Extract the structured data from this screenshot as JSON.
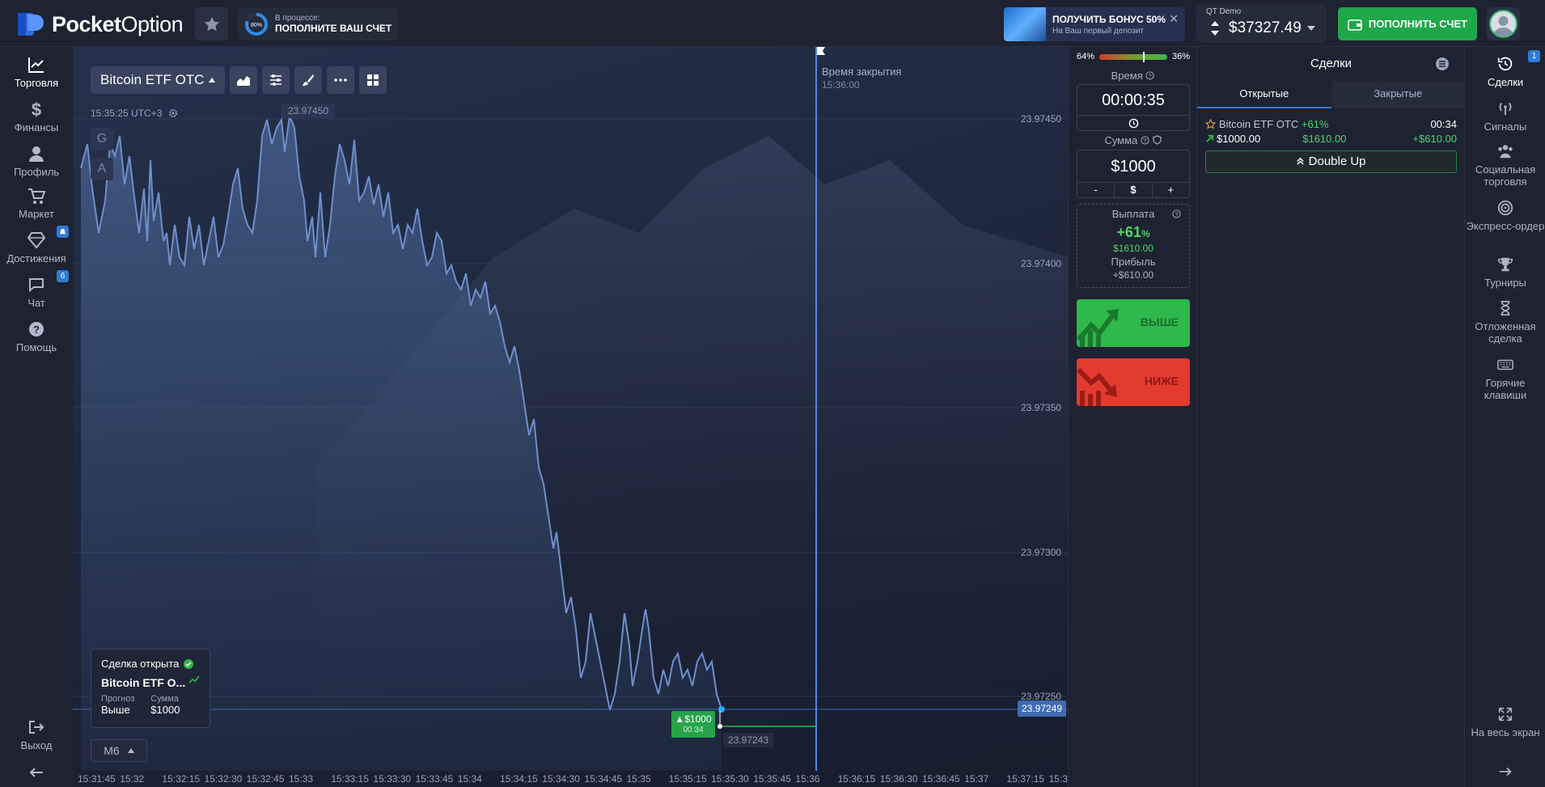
{
  "header": {
    "brand_bold": "Pocket",
    "brand_light": "Option",
    "progress_percent_label": "80%",
    "progress_line1": "В процессе:",
    "progress_line2": "ПОПОЛНИТЕ ВАШ СЧЕТ",
    "bonus_title": "ПОЛУЧИТЬ БОНУС 50%",
    "bonus_subtitle": "На Ваш первый депозит",
    "account_label": "QT Demo",
    "account_balance": "$37327.49",
    "deposit_label": "ПОПОЛНИТЬ СЧЕТ"
  },
  "left_nav": {
    "items": [
      {
        "label": "Торговля",
        "icon": "chart-line-icon"
      },
      {
        "label": "Финансы",
        "icon": "dollar-icon"
      },
      {
        "label": "Профиль",
        "icon": "user-icon"
      },
      {
        "label": "Маркет",
        "icon": "cart-icon"
      },
      {
        "label": "Достижения",
        "icon": "diamond-icon"
      },
      {
        "label": "Чат",
        "icon": "chat-icon"
      },
      {
        "label": "Помощь",
        "icon": "help-icon"
      }
    ],
    "chat_badge": "6",
    "exit_label": "Выход"
  },
  "chart": {
    "asset": "Bitcoin ETF OTC",
    "clock": "15:35:25 UTC+3",
    "g_label": "G",
    "a_label": "A",
    "high_label": "23.97450",
    "close_time_label": "Время закрытия",
    "close_time_value": "15:36:00",
    "price_levels": [
      "23.97450",
      "23.97400",
      "23.97350",
      "23.97300",
      "23.97250"
    ],
    "current_price": "23.97249",
    "entry_price": "23.97243",
    "trade_amount": "$1000",
    "trade_timer": "00:34",
    "timeframe": "M6",
    "time_ticks": [
      "15:31:45",
      "15:32",
      "15:32:15",
      "15:32:30",
      "15:32:45",
      "15:33",
      "15:33:15",
      "15:33:30",
      "15:33:45",
      "15:34",
      "15:34:15",
      "15:34:30",
      "15:34:45",
      "15:35",
      "15:35:15",
      "15:35:30",
      "15:35:45",
      "15:36",
      "15:36:15",
      "15:36:30",
      "15:36:45",
      "15:37",
      "15:37:15",
      "15:3"
    ],
    "deal_card": {
      "title": "Сделка открыта",
      "asset": "Bitcoin ETF O...",
      "forecast_label": "Прогноз",
      "forecast_value": "Выше",
      "amount_label": "Сумма",
      "amount_value": "$1000"
    }
  },
  "trade_panel": {
    "sentiment_down": "64%",
    "sentiment_up": "36%",
    "sentiment_fraction": 0.36,
    "time_label": "Время",
    "time_value": "00:00:35",
    "amount_label": "Сумма",
    "amount_value": "$1000",
    "minus": "-",
    "currency": "$",
    "plus": "+",
    "payout_label": "Выплата",
    "payout_percent": "+61",
    "payout_percent_sign": "%",
    "payout_amount": "$1610.00",
    "profit_label": "Прибыль",
    "profit_value": "+$610.00",
    "up_label": "ВЫШЕ",
    "down_label": "НИЖЕ"
  },
  "deals": {
    "title": "Сделки",
    "tab_open": "Открытые",
    "tab_closed": "Закрытые",
    "row": {
      "asset": "Bitcoin ETF OTC",
      "pct": "+61%",
      "time": "00:34",
      "amount": "$1000.00",
      "payout": "$1610.00",
      "profit": "+$610.00"
    },
    "double_up": "Double Up"
  },
  "right_nav": {
    "items": [
      {
        "label": "Сделки",
        "icon": "history-icon"
      },
      {
        "label": "Сигналы",
        "icon": "signal-icon"
      },
      {
        "label": "Социальная торговля",
        "icon": "users-icon"
      },
      {
        "label": "Экспресс-ордер",
        "icon": "target-icon"
      },
      {
        "label": "Турниры",
        "icon": "trophy-icon"
      },
      {
        "label": "Отложенная сделка",
        "icon": "hourglass-icon"
      },
      {
        "label": "Горячие клавиши",
        "icon": "keyboard-icon"
      }
    ],
    "deals_badge": "1",
    "fullscreen_label": "На весь экран"
  },
  "colors": {
    "up": "#2fb84b",
    "down": "#e33a2f",
    "accent": "#2f7bd8"
  }
}
